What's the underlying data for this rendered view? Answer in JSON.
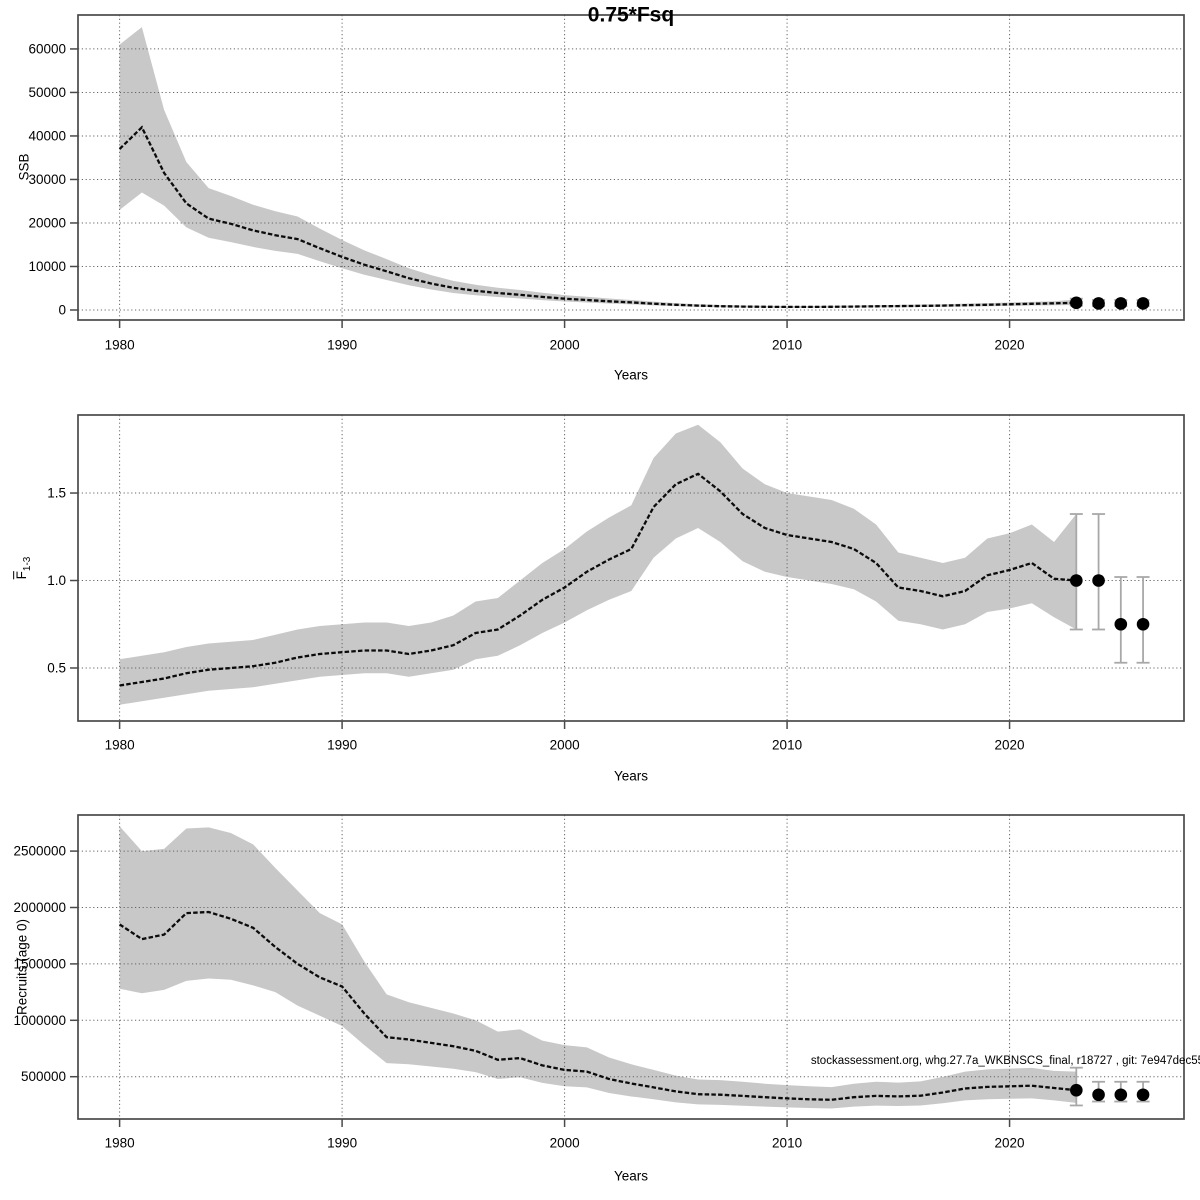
{
  "title": "0.75*Fsq",
  "xlabel": "Years",
  "fbar_label": {
    "base": "F",
    "sub": "1-3"
  },
  "colors": {
    "band": "#c8c8c8",
    "line": "#0b0b0b",
    "grid": "#666666",
    "frame": "#4a4a4a",
    "errbar": "#a8a8a8",
    "dot": "#000000",
    "text": "#000000"
  },
  "chart_data": [
    {
      "type": "line",
      "title": "0.75*Fsq",
      "ylabel": "SSB",
      "xlabel": "Years",
      "x": [
        1980,
        1981,
        1982,
        1983,
        1984,
        1985,
        1986,
        1987,
        1988,
        1989,
        1990,
        1991,
        1992,
        1993,
        1994,
        1995,
        1996,
        1997,
        1998,
        1999,
        2000,
        2001,
        2002,
        2003,
        2004,
        2005,
        2006,
        2007,
        2008,
        2009,
        2010,
        2011,
        2012,
        2013,
        2014,
        2015,
        2016,
        2017,
        2018,
        2019,
        2020,
        2021,
        2022,
        2023
      ],
      "series": [
        {
          "name": "estimate",
          "values": [
            37000,
            42000,
            31500,
            24500,
            21000,
            19800,
            18300,
            17200,
            16300,
            14200,
            12200,
            10400,
            8900,
            7300,
            6100,
            5100,
            4400,
            3900,
            3500,
            3000,
            2600,
            2300,
            2000,
            1750,
            1450,
            1200,
            1000,
            880,
            790,
            730,
            700,
            700,
            740,
            790,
            840,
            890,
            950,
            1010,
            1100,
            1200,
            1310,
            1420,
            1530,
            1650
          ]
        },
        {
          "name": "lower_95",
          "values": [
            23000,
            27000,
            24000,
            19000,
            16600,
            15600,
            14500,
            13600,
            12900,
            11200,
            9600,
            8100,
            6900,
            5700,
            4700,
            3900,
            3400,
            3000,
            2650,
            2280,
            1960,
            1730,
            1500,
            1300,
            1070,
            880,
            730,
            640,
            570,
            530,
            500,
            500,
            530,
            570,
            600,
            640,
            680,
            720,
            790,
            860,
            940,
            1020,
            1100,
            1150
          ]
        },
        {
          "name": "upper_95",
          "values": [
            61000,
            65000,
            46000,
            34000,
            28000,
            26200,
            24200,
            22700,
            21500,
            18700,
            16100,
            13700,
            11700,
            9600,
            8000,
            6700,
            5800,
            5100,
            4600,
            3950,
            3420,
            3030,
            2640,
            2310,
            1910,
            1580,
            1320,
            1160,
            1040,
            960,
            920,
            920,
            980,
            1040,
            1110,
            1170,
            1250,
            1330,
            1450,
            1580,
            1730,
            1870,
            2020,
            2400
          ]
        }
      ],
      "forecast": [
        {
          "x": 2023,
          "y": 1650,
          "lo": 1000,
          "hi": 2600
        },
        {
          "x": 2024,
          "y": 1500,
          "lo": 900,
          "hi": 2300
        },
        {
          "x": 2025,
          "y": 1500,
          "lo": 900,
          "hi": 2300
        },
        {
          "x": 2026,
          "y": 1500,
          "lo": 900,
          "hi": 2300
        }
      ],
      "xtick_values": [
        1980,
        1990,
        2000,
        2010,
        2020
      ],
      "xtick_labels": [
        "1980",
        "1990",
        "2000",
        "2010",
        "2020"
      ],
      "ytick_values": [
        0,
        10000,
        20000,
        30000,
        40000,
        50000,
        60000
      ],
      "ytick_labels": [
        "0",
        "10000",
        "20000",
        "30000",
        "40000",
        "50000",
        "60000"
      ],
      "xlim": [
        1978.13,
        2027.84
      ],
      "ylim": [
        -2300,
        67800
      ],
      "grid": true,
      "legend": "none"
    },
    {
      "type": "line",
      "title": "",
      "ylabel": "F 1-3 (bar)",
      "xlabel": "Years",
      "x": [
        1980,
        1981,
        1982,
        1983,
        1984,
        1985,
        1986,
        1987,
        1988,
        1989,
        1990,
        1991,
        1992,
        1993,
        1994,
        1995,
        1996,
        1997,
        1998,
        1999,
        2000,
        2001,
        2002,
        2003,
        2004,
        2005,
        2006,
        2007,
        2008,
        2009,
        2010,
        2011,
        2012,
        2013,
        2014,
        2015,
        2016,
        2017,
        2018,
        2019,
        2020,
        2021,
        2022,
        2023
      ],
      "series": [
        {
          "name": "estimate",
          "values": [
            0.4,
            0.42,
            0.44,
            0.47,
            0.49,
            0.5,
            0.51,
            0.53,
            0.56,
            0.58,
            0.59,
            0.6,
            0.6,
            0.58,
            0.6,
            0.63,
            0.7,
            0.72,
            0.8,
            0.89,
            0.96,
            1.05,
            1.12,
            1.18,
            1.42,
            1.55,
            1.61,
            1.51,
            1.38,
            1.3,
            1.26,
            1.24,
            1.22,
            1.18,
            1.1,
            0.96,
            0.94,
            0.91,
            0.94,
            1.03,
            1.06,
            1.1,
            1.01,
            1.0
          ]
        },
        {
          "name": "lower_95",
          "values": [
            0.29,
            0.31,
            0.33,
            0.35,
            0.37,
            0.38,
            0.39,
            0.41,
            0.43,
            0.45,
            0.46,
            0.47,
            0.47,
            0.45,
            0.47,
            0.49,
            0.55,
            0.57,
            0.63,
            0.7,
            0.76,
            0.83,
            0.89,
            0.94,
            1.13,
            1.24,
            1.3,
            1.22,
            1.11,
            1.05,
            1.02,
            1.0,
            0.98,
            0.95,
            0.88,
            0.77,
            0.75,
            0.72,
            0.75,
            0.82,
            0.84,
            0.87,
            0.79,
            0.72
          ]
        },
        {
          "name": "upper_95",
          "values": [
            0.55,
            0.57,
            0.59,
            0.62,
            0.64,
            0.65,
            0.66,
            0.69,
            0.72,
            0.74,
            0.75,
            0.76,
            0.76,
            0.74,
            0.76,
            0.8,
            0.88,
            0.9,
            1.0,
            1.1,
            1.18,
            1.28,
            1.36,
            1.43,
            1.7,
            1.84,
            1.89,
            1.79,
            1.64,
            1.55,
            1.5,
            1.48,
            1.46,
            1.41,
            1.32,
            1.16,
            1.13,
            1.1,
            1.13,
            1.24,
            1.27,
            1.32,
            1.22,
            1.38
          ]
        }
      ],
      "forecast": [
        {
          "x": 2023,
          "y": 1.0,
          "lo": 0.72,
          "hi": 1.38
        },
        {
          "x": 2024,
          "y": 1.0,
          "lo": 0.72,
          "hi": 1.38
        },
        {
          "x": 2025,
          "y": 0.75,
          "lo": 0.53,
          "hi": 1.02
        },
        {
          "x": 2026,
          "y": 0.75,
          "lo": 0.53,
          "hi": 1.02
        }
      ],
      "xtick_values": [
        1980,
        1990,
        2000,
        2010,
        2020
      ],
      "xtick_labels": [
        "1980",
        "1990",
        "2000",
        "2010",
        "2020"
      ],
      "ytick_values": [
        0.5,
        1.0,
        1.5
      ],
      "ytick_labels": [
        "0.5",
        "1.0",
        "1.5"
      ],
      "xlim": [
        1978.13,
        2027.84
      ],
      "ylim": [
        0.197,
        1.946
      ],
      "grid": true,
      "legend": "none"
    },
    {
      "type": "line",
      "title": "",
      "ylabel": "Recruits (age 0)",
      "xlabel": "Years",
      "annotation": "stockassessment.org, whg.27.7a_WKBNSCS_final, r18727 , git: 7e947dec55",
      "x": [
        1980,
        1981,
        1982,
        1983,
        1984,
        1985,
        1986,
        1987,
        1988,
        1989,
        1990,
        1991,
        1992,
        1993,
        1994,
        1995,
        1996,
        1997,
        1998,
        1999,
        2000,
        2001,
        2002,
        2003,
        2004,
        2005,
        2006,
        2007,
        2008,
        2009,
        2010,
        2011,
        2012,
        2013,
        2014,
        2015,
        2016,
        2017,
        2018,
        2019,
        2020,
        2021,
        2022,
        2023
      ],
      "series": [
        {
          "name": "estimate",
          "values": [
            1850000,
            1720000,
            1760000,
            1950000,
            1960000,
            1900000,
            1820000,
            1650000,
            1500000,
            1380000,
            1300000,
            1060000,
            850000,
            830000,
            800000,
            770000,
            730000,
            650000,
            665000,
            600000,
            560000,
            545000,
            480000,
            440000,
            405000,
            370000,
            345000,
            340000,
            330000,
            318000,
            308000,
            300000,
            295000,
            318000,
            330000,
            325000,
            332000,
            360000,
            395000,
            410000,
            415000,
            420000,
            400000,
            380000
          ]
        },
        {
          "name": "lower_95",
          "values": [
            1280000,
            1240000,
            1270000,
            1350000,
            1370000,
            1360000,
            1310000,
            1250000,
            1130000,
            1040000,
            950000,
            780000,
            620000,
            610000,
            590000,
            570000,
            540000,
            480000,
            495000,
            445000,
            415000,
            405000,
            355000,
            325000,
            300000,
            272000,
            255000,
            250000,
            243000,
            235000,
            228000,
            222000,
            218000,
            235000,
            244000,
            240000,
            245000,
            265000,
            290000,
            300000,
            305000,
            308000,
            290000,
            268000
          ]
        },
        {
          "name": "upper_95",
          "values": [
            2720000,
            2500000,
            2520000,
            2700000,
            2710000,
            2660000,
            2560000,
            2350000,
            2150000,
            1950000,
            1850000,
            1520000,
            1230000,
            1160000,
            1110000,
            1060000,
            1000000,
            900000,
            920000,
            820000,
            780000,
            760000,
            670000,
            610000,
            560000,
            510000,
            475000,
            470000,
            455000,
            438000,
            425000,
            415000,
            408000,
            438000,
            455000,
            448000,
            458000,
            498000,
            545000,
            565000,
            572000,
            578000,
            552000,
            545000
          ]
        }
      ],
      "forecast": [
        {
          "x": 2023,
          "y": 380000,
          "lo": 245000,
          "hi": 580000
        },
        {
          "x": 2024,
          "y": 340000,
          "lo": 280000,
          "hi": 455000
        },
        {
          "x": 2025,
          "y": 340000,
          "lo": 280000,
          "hi": 455000
        },
        {
          "x": 2026,
          "y": 340000,
          "lo": 280000,
          "hi": 455000
        }
      ],
      "xtick_values": [
        1980,
        1990,
        2000,
        2010,
        2020
      ],
      "xtick_labels": [
        "1980",
        "1990",
        "2000",
        "2010",
        "2020"
      ],
      "ytick_values": [
        500000,
        1000000,
        1500000,
        2000000,
        2500000
      ],
      "ytick_labels": [
        "500000",
        "1000000",
        "1500000",
        "2000000",
        "2500000"
      ],
      "xlim": [
        1978.13,
        2027.84
      ],
      "ylim": [
        125000,
        2820000
      ],
      "grid": true,
      "legend": "none"
    }
  ]
}
